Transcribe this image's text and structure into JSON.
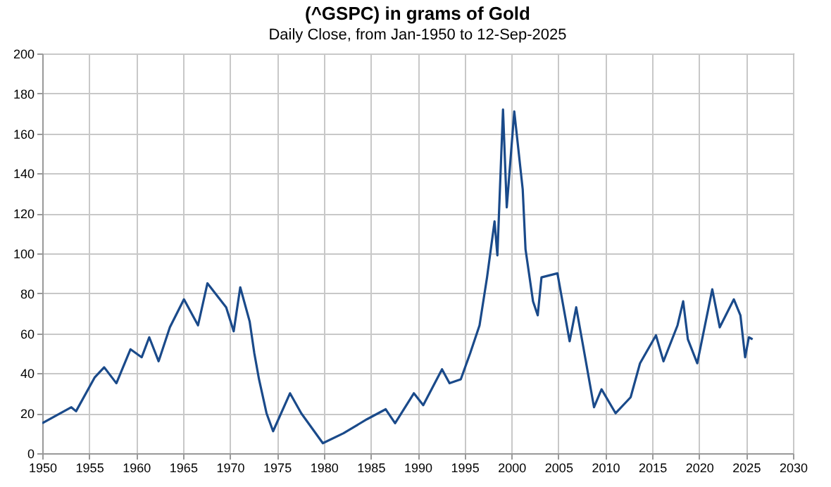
{
  "chart_data": {
    "type": "line",
    "title": "(^GSPC) in grams of Gold",
    "subtitle": "Daily Close, from Jan-1950 to 12-Sep-2025",
    "x": [
      1950,
      1953.1,
      1953.6,
      1955.6,
      1956.6,
      1957.9,
      1959.4,
      1960.6,
      1961.4,
      1962.4,
      1963.6,
      1965.1,
      1966.6,
      1967.6,
      1969.6,
      1970.4,
      1971.1,
      1972.1,
      1972.6,
      1973.1,
      1973.9,
      1974.6,
      1976.4,
      1977.6,
      1979.9,
      1982.1,
      1984.6,
      1986.6,
      1987.6,
      1989.6,
      1990.6,
      1992.6,
      1993.4,
      1994.6,
      1995.6,
      1996.6,
      1997.4,
      1998.2,
      1998.5,
      1999.1,
      1999.5,
      2000.3,
      2001.2,
      2001.5,
      2002.3,
      2002.8,
      2003.2,
      2004.9,
      2006.2,
      2006.9,
      2007.7,
      2008.8,
      2009.6,
      2011.1,
      2012.7,
      2013.7,
      2015.4,
      2016.2,
      2017.7,
      2018.3,
      2018.8,
      2019.8,
      2021.4,
      2022.2,
      2023.7,
      2024.4,
      2024.9,
      2025.3,
      2025.7
    ],
    "series": [
      {
        "color": "#1a4a8a",
        "values": [
          15,
          23,
          21,
          38,
          43,
          35,
          52,
          48,
          58,
          46,
          63,
          77,
          64,
          85,
          73,
          61,
          83,
          66,
          50,
          37,
          20,
          11,
          30,
          20,
          5,
          10,
          17,
          22,
          15,
          30,
          24,
          42,
          35,
          37,
          50,
          64,
          88,
          116,
          99,
          172,
          123,
          171,
          132,
          102,
          76,
          69,
          88,
          90,
          56,
          73,
          52,
          23,
          32,
          20,
          28,
          45,
          59,
          46,
          64,
          76,
          57,
          45,
          82,
          63,
          77,
          69,
          48,
          58,
          57
        ]
      }
    ],
    "xlim": [
      1950,
      2030
    ],
    "xticks": [
      1950,
      1955,
      1960,
      1965,
      1970,
      1975,
      1980,
      1985,
      1990,
      1995,
      2000,
      2005,
      2010,
      2015,
      2020,
      2025,
      2030
    ],
    "ylim": [
      0,
      200
    ],
    "yticks": [
      0,
      20,
      40,
      60,
      80,
      100,
      120,
      140,
      160,
      180,
      200
    ],
    "grid": true
  }
}
